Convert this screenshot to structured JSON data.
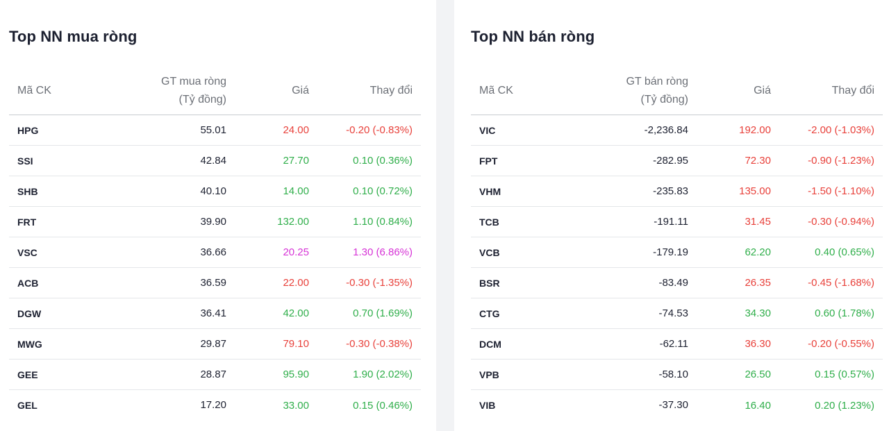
{
  "colors": {
    "up": "#2fae4a",
    "down": "#e8403a",
    "ceiling": "#d632d6"
  },
  "buy": {
    "title": "Top NN mua ròng",
    "headers": {
      "symbol": "Mã CK",
      "value_line1": "GT mua ròng",
      "value_line2": "(Tỷ đồng)",
      "price": "Giá",
      "change": "Thay đổi"
    },
    "rows": [
      {
        "symbol": "HPG",
        "value": "55.01",
        "price": "24.00",
        "change": "-0.20 (-0.83%)",
        "trend": "down"
      },
      {
        "symbol": "SSI",
        "value": "42.84",
        "price": "27.70",
        "change": "0.10 (0.36%)",
        "trend": "up"
      },
      {
        "symbol": "SHB",
        "value": "40.10",
        "price": "14.00",
        "change": "0.10 (0.72%)",
        "trend": "up"
      },
      {
        "symbol": "FRT",
        "value": "39.90",
        "price": "132.00",
        "change": "1.10 (0.84%)",
        "trend": "up"
      },
      {
        "symbol": "VSC",
        "value": "36.66",
        "price": "20.25",
        "change": "1.30 (6.86%)",
        "trend": "ceil"
      },
      {
        "symbol": "ACB",
        "value": "36.59",
        "price": "22.00",
        "change": "-0.30 (-1.35%)",
        "trend": "down"
      },
      {
        "symbol": "DGW",
        "value": "36.41",
        "price": "42.00",
        "change": "0.70 (1.69%)",
        "trend": "up"
      },
      {
        "symbol": "MWG",
        "value": "29.87",
        "price": "79.10",
        "change": "-0.30 (-0.38%)",
        "trend": "down"
      },
      {
        "symbol": "GEE",
        "value": "28.87",
        "price": "95.90",
        "change": "1.90 (2.02%)",
        "trend": "up"
      },
      {
        "symbol": "GEL",
        "value": "17.20",
        "price": "33.00",
        "change": "0.15 (0.46%)",
        "trend": "up"
      }
    ]
  },
  "sell": {
    "title": "Top NN bán ròng",
    "headers": {
      "symbol": "Mã CK",
      "value_line1": "GT bán ròng",
      "value_line2": "(Tỷ đồng)",
      "price": "Giá",
      "change": "Thay đổi"
    },
    "rows": [
      {
        "symbol": "VIC",
        "value": "-2,236.84",
        "price": "192.00",
        "change": "-2.00 (-1.03%)",
        "trend": "down"
      },
      {
        "symbol": "FPT",
        "value": "-282.95",
        "price": "72.30",
        "change": "-0.90 (-1.23%)",
        "trend": "down"
      },
      {
        "symbol": "VHM",
        "value": "-235.83",
        "price": "135.00",
        "change": "-1.50 (-1.10%)",
        "trend": "down"
      },
      {
        "symbol": "TCB",
        "value": "-191.11",
        "price": "31.45",
        "change": "-0.30 (-0.94%)",
        "trend": "down"
      },
      {
        "symbol": "VCB",
        "value": "-179.19",
        "price": "62.20",
        "change": "0.40 (0.65%)",
        "trend": "up"
      },
      {
        "symbol": "BSR",
        "value": "-83.49",
        "price": "26.35",
        "change": "-0.45 (-1.68%)",
        "trend": "down"
      },
      {
        "symbol": "CTG",
        "value": "-74.53",
        "price": "34.30",
        "change": "0.60 (1.78%)",
        "trend": "up"
      },
      {
        "symbol": "DCM",
        "value": "-62.11",
        "price": "36.30",
        "change": "-0.20 (-0.55%)",
        "trend": "down"
      },
      {
        "symbol": "VPB",
        "value": "-58.10",
        "price": "26.50",
        "change": "0.15 (0.57%)",
        "trend": "up"
      },
      {
        "symbol": "VIB",
        "value": "-37.30",
        "price": "16.40",
        "change": "0.20 (1.23%)",
        "trend": "up"
      }
    ]
  }
}
